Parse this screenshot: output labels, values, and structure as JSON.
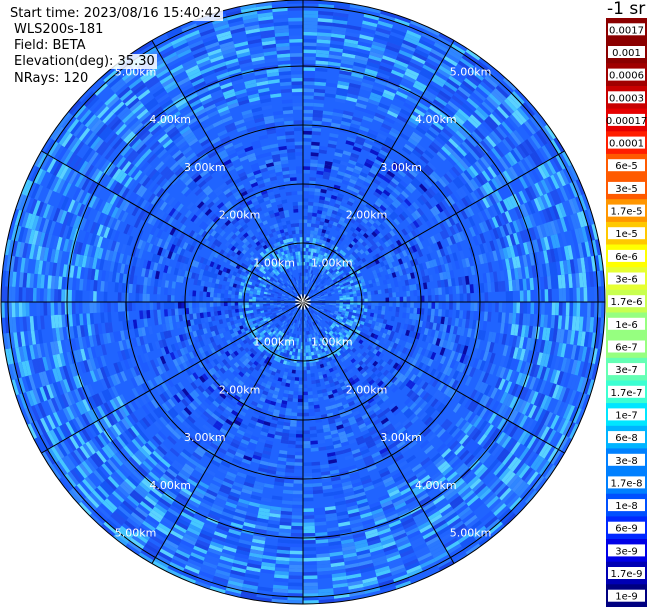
{
  "info": {
    "start_time": "Start time: 2023/08/16 15:40:42",
    "instrument": "WLS200s-181",
    "field": "Field: BETA",
    "elevation": "Elevation(deg): 35.30",
    "nrays": "NRays: 120"
  },
  "colorbar": {
    "unit": "-1 sr",
    "colors": [
      "#8b0000",
      "#a00000",
      "#c80000",
      "#e60000",
      "#ff1e00",
      "#ff5a00",
      "#ff9600",
      "#ffc800",
      "#ffff00",
      "#e6ff32",
      "#c8ff50",
      "#96ff80",
      "#64ffb4",
      "#3cffd2",
      "#00e6ff",
      "#00b4ff",
      "#0080ff",
      "#0050ff",
      "#0028ff",
      "#0000e6",
      "#0000b4",
      "#000080"
    ],
    "labels": [
      "0.0017",
      "0.001",
      "0.0006",
      "0.0003",
      "0.00017",
      "0.0001",
      "6e-5",
      "3e-5",
      "1.7e-5",
      "1e-5",
      "6e-6",
      "3e-6",
      "1.7e-6",
      "1e-6",
      "6e-7",
      "3e-7",
      "1.7e-7",
      "1e-7",
      "6e-8",
      "3e-8",
      "1.7e-8",
      "1e-8",
      "6e-9",
      "3e-9",
      "1.7e-9",
      "1e-9"
    ]
  },
  "chart_data": {
    "type": "heatmap",
    "projection": "polar (PPI)",
    "field": "BETA",
    "elevation_deg": 35.3,
    "n_rays": 120,
    "max_range_km": 5.0,
    "range_rings_km": [
      1,
      2,
      3,
      4,
      5
    ],
    "ring_labels": [
      "1.00km",
      "2.00km",
      "3.00km",
      "4.00km",
      "5.00km"
    ],
    "spokes_deg": [
      0,
      30,
      60,
      90,
      120,
      150,
      180,
      210,
      240,
      270,
      300,
      330
    ],
    "dominant_range": [
      "1e-8",
      "1e-7"
    ],
    "colormap": "jet"
  }
}
